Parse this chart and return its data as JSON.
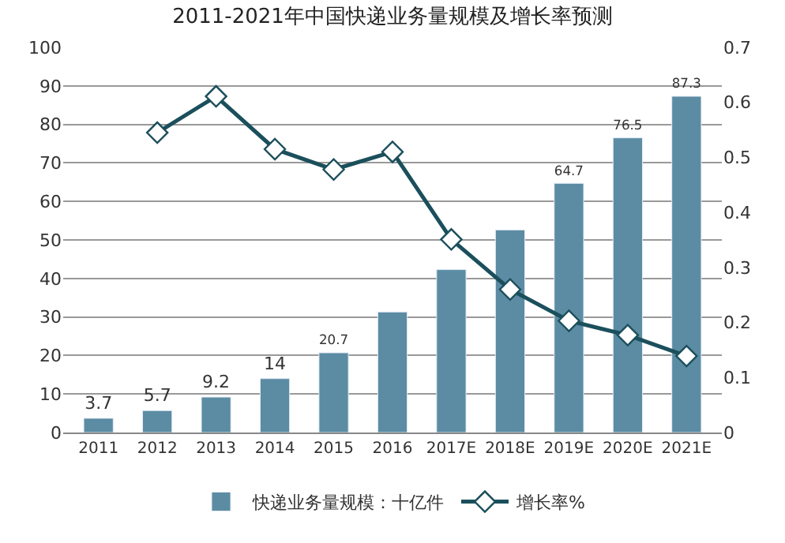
{
  "chart_data": {
    "type": "bar",
    "title": "2011-2021年中国快递业务量规模及增长率预测",
    "categories": [
      "2011",
      "2012",
      "2013",
      "2014",
      "2015",
      "2016",
      "2017E",
      "2018E",
      "2019E",
      "2020E",
      "2021E"
    ],
    "series": [
      {
        "name": "快递业务量规模：十亿件",
        "color": "#5b8ca3",
        "values": [
          3.7,
          5.7,
          9.2,
          14,
          20.7,
          31.3,
          42.3,
          52.6,
          64.7,
          76.5,
          87.3
        ],
        "value_labels": [
          "3.7",
          "5.7",
          "9.2",
          "14",
          "20.7",
          null,
          null,
          null,
          "64.7",
          "76.5",
          "87.3"
        ]
      },
      {
        "name": "增长率%",
        "type": "line",
        "axis": "y2",
        "color": "#1b4f5c",
        "marker": "diamond",
        "values": [
          null,
          0.545,
          0.611,
          0.515,
          0.478,
          0.51,
          0.351,
          0.26,
          0.203,
          0.177,
          0.139
        ]
      }
    ],
    "ylim": [
      0,
      100
    ],
    "yticks": [
      0,
      10,
      20,
      30,
      40,
      50,
      60,
      70,
      80,
      90,
      100
    ],
    "y2lim": [
      0,
      0.7
    ],
    "y2ticks": [
      0,
      0.1,
      0.2,
      0.3,
      0.4,
      0.5,
      0.6,
      0.7
    ],
    "grid": "y",
    "legend": "bottom"
  }
}
